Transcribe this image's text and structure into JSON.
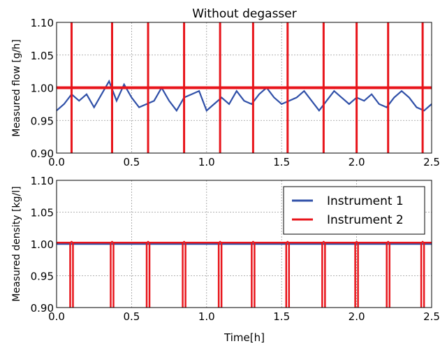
{
  "chart_data": [
    {
      "type": "line",
      "title": "Without degasser",
      "xlabel": "",
      "ylabel": "Measured flow [g/h]",
      "xlim": [
        0.0,
        2.5
      ],
      "ylim": [
        0.9,
        1.1
      ],
      "xticks": [
        "0.0",
        "0.5",
        "1.0",
        "1.5",
        "2.0",
        "2.5"
      ],
      "yticks": [
        "0.90",
        "0.95",
        "1.00",
        "1.05",
        "1.10"
      ],
      "grid": true,
      "series": [
        {
          "name": "Instrument 1",
          "color": "#3050a8",
          "x": [
            0.0,
            0.05,
            0.1,
            0.15,
            0.2,
            0.25,
            0.3,
            0.35,
            0.4,
            0.45,
            0.5,
            0.55,
            0.6,
            0.65,
            0.7,
            0.75,
            0.8,
            0.85,
            0.9,
            0.95,
            1.0,
            1.05,
            1.1,
            1.15,
            1.2,
            1.25,
            1.3,
            1.35,
            1.4,
            1.45,
            1.5,
            1.55,
            1.6,
            1.65,
            1.7,
            1.75,
            1.8,
            1.85,
            1.9,
            1.95,
            2.0,
            2.05,
            2.1,
            2.15,
            2.2,
            2.25,
            2.3,
            2.35,
            2.4,
            2.45,
            2.5
          ],
          "y": [
            0.965,
            0.975,
            0.99,
            0.98,
            0.99,
            0.97,
            0.99,
            1.01,
            0.98,
            1.005,
            0.985,
            0.97,
            0.975,
            0.98,
            1.0,
            0.98,
            0.965,
            0.985,
            0.99,
            0.995,
            0.965,
            0.975,
            0.985,
            0.975,
            0.995,
            0.98,
            0.975,
            0.99,
            1.0,
            0.985,
            0.975,
            0.98,
            0.985,
            0.995,
            0.98,
            0.965,
            0.98,
            0.995,
            0.985,
            0.975,
            0.985,
            0.98,
            0.99,
            0.975,
            0.97,
            0.985,
            0.995,
            0.985,
            0.97,
            0.965,
            0.975
          ]
        },
        {
          "name": "Instrument 2",
          "color": "#e8151b",
          "baseline": 1.0,
          "spike_times": [
            0.1,
            0.37,
            0.61,
            0.85,
            1.09,
            1.31,
            1.54,
            1.78,
            2.0,
            2.21,
            2.44
          ]
        }
      ]
    },
    {
      "type": "line",
      "title": "",
      "xlabel": "Time[h]",
      "ylabel": "Measured density [kg/l]",
      "xlim": [
        0.0,
        2.5
      ],
      "ylim": [
        0.9,
        1.1
      ],
      "xticks": [
        "0.0",
        "0.5",
        "1.0",
        "1.5",
        "2.0",
        "2.5"
      ],
      "yticks": [
        "0.90",
        "0.95",
        "1.00",
        "1.05",
        "1.10"
      ],
      "grid": true,
      "legend": "top-right",
      "series": [
        {
          "name": "Instrument 1",
          "color": "#3050a8",
          "baseline": 1.0
        },
        {
          "name": "Instrument 2",
          "color": "#e8151b",
          "baseline": 1.002,
          "spike_times": [
            0.1,
            0.37,
            0.61,
            0.85,
            1.09,
            1.31,
            1.54,
            1.78,
            2.0,
            2.21,
            2.44
          ],
          "spike_min": 0.9
        }
      ]
    }
  ]
}
